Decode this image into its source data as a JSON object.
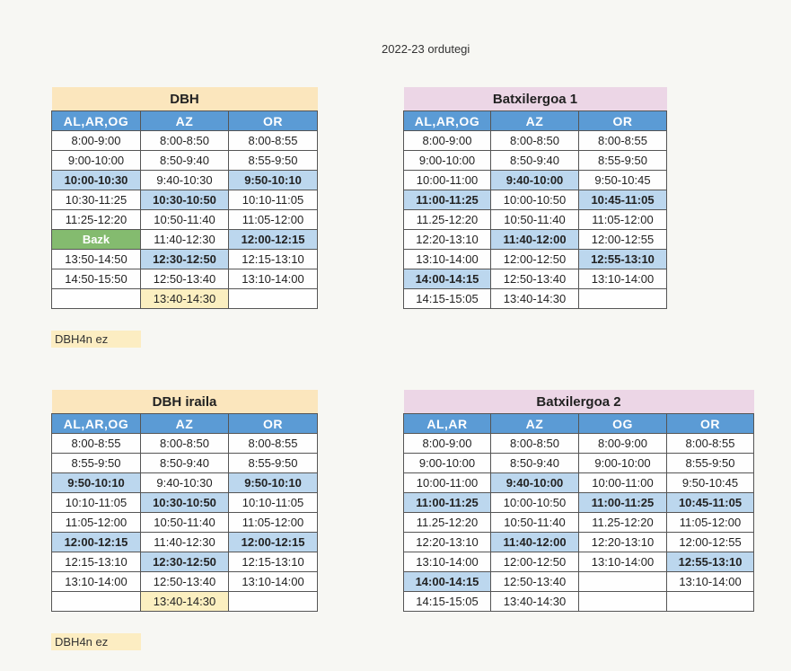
{
  "doc_title": "2022-23 ordutegi",
  "colors": {
    "header": "#5b9bd5",
    "highlight": "#bcd7ee",
    "green": "#84bb6f",
    "dbh_title": "#fbe6bd",
    "batx_title": "#ecd6e6",
    "note": "#fcedc2"
  },
  "tables": [
    {
      "title": "DBH",
      "columns": [
        "AL,AR,OG",
        "AZ",
        "OR"
      ],
      "rows": [
        [
          "8:00-9:00",
          "8:00-8:50",
          "8:00-8:55"
        ],
        [
          "9:00-10:00",
          "8:50-9:40",
          "8:55-9:50"
        ],
        [
          "10:00-10:30",
          "9:40-10:30",
          "9:50-10:10"
        ],
        [
          "10:30-11:25",
          "10:30-10:50",
          "10:10-11:05"
        ],
        [
          "11:25-12:20",
          "10:50-11:40",
          "11:05-12:00"
        ],
        [
          "Bazk",
          "11:40-12:30",
          "12:00-12:15"
        ],
        [
          "13:50-14:50",
          "12:30-12:50",
          "12:15-13:10"
        ],
        [
          "14:50-15:50",
          "12:50-13:40",
          "13:10-14:00"
        ],
        [
          "",
          "13:40-14:30",
          ""
        ]
      ]
    },
    {
      "title": "Batxilergoa 1",
      "columns": [
        "AL,AR,OG",
        "AZ",
        "OR"
      ],
      "rows": [
        [
          "8:00-9:00",
          "8:00-8:50",
          "8:00-8:55"
        ],
        [
          "9:00-10:00",
          "8:50-9:40",
          "8:55-9:50"
        ],
        [
          "10:00-11:00",
          "9:40-10:00",
          "9:50-10:45"
        ],
        [
          "11:00-11:25",
          "10:00-10:50",
          "10:45-11:05"
        ],
        [
          "11.25-12:20",
          "10:50-11:40",
          "11:05-12:00"
        ],
        [
          "12:20-13:10",
          "11:40-12:00",
          "12:00-12:55"
        ],
        [
          "13:10-14:00",
          "12:00-12:50",
          "12:55-13:10"
        ],
        [
          "14:00-14:15",
          "12:50-13:40",
          "13:10-14:00"
        ],
        [
          "14:15-15:05",
          "13:40-14:30",
          ""
        ]
      ]
    },
    {
      "title": "DBH iraila",
      "columns": [
        "AL,AR,OG",
        "AZ",
        "OR"
      ],
      "rows": [
        [
          "8:00-8:55",
          "8:00-8:50",
          "8:00-8:55"
        ],
        [
          "8:55-9:50",
          "8:50-9:40",
          "8:55-9:50"
        ],
        [
          "9:50-10:10",
          "9:40-10:30",
          "9:50-10:10"
        ],
        [
          "10:10-11:05",
          "10:30-10:50",
          "10:10-11:05"
        ],
        [
          "11:05-12:00",
          "10:50-11:40",
          "11:05-12:00"
        ],
        [
          "12:00-12:15",
          "11:40-12:30",
          "12:00-12:15"
        ],
        [
          "12:15-13:10",
          "12:30-12:50",
          "12:15-13:10"
        ],
        [
          "13:10-14:00",
          "12:50-13:40",
          "13:10-14:00"
        ],
        [
          "",
          "13:40-14:30",
          ""
        ]
      ]
    },
    {
      "title": "Batxilergoa 2",
      "columns": [
        "AL,AR",
        "AZ",
        "OG",
        "OR"
      ],
      "rows": [
        [
          "8:00-9:00",
          "8:00-8:50",
          "8:00-9:00",
          "8:00-8:55"
        ],
        [
          "9:00-10:00",
          "8:50-9:40",
          "9:00-10:00",
          "8:55-9:50"
        ],
        [
          "10:00-11:00",
          "9:40-10:00",
          "10:00-11:00",
          "9:50-10:45"
        ],
        [
          "11:00-11:25",
          "10:00-10:50",
          "11:00-11:25",
          "10:45-11:05"
        ],
        [
          "11.25-12:20",
          "10:50-11:40",
          "11.25-12:20",
          "11:05-12:00"
        ],
        [
          "12:20-13:10",
          "11:40-12:00",
          "12:20-13:10",
          "12:00-12:55"
        ],
        [
          "13:10-14:00",
          "12:00-12:50",
          "13:10-14:00",
          "12:55-13:10"
        ],
        [
          "14:00-14:15",
          "12:50-13:40",
          "",
          "13:10-14:00"
        ],
        [
          "14:15-15:05",
          "13:40-14:30",
          "",
          ""
        ]
      ]
    }
  ],
  "notes": [
    "DBH4n ez",
    "DBH4n ez"
  ]
}
